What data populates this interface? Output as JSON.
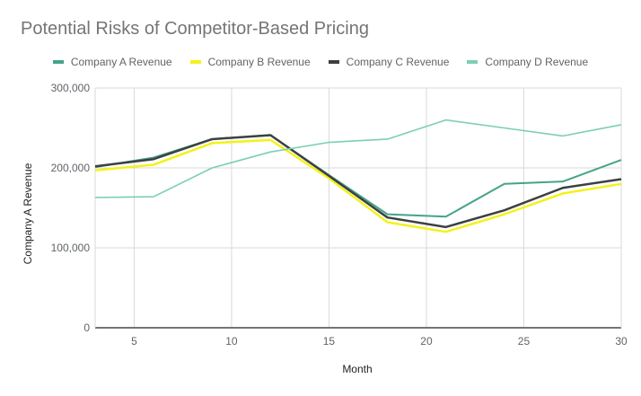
{
  "chart_data": {
    "type": "line",
    "title": "Potential Risks of Competitor-Based Pricing",
    "xlabel": "Month",
    "ylabel": "Company A Revenue",
    "xlim": [
      3,
      30
    ],
    "ylim": [
      0,
      300000
    ],
    "x_ticks": [
      5,
      10,
      15,
      20,
      25,
      30
    ],
    "y_ticks": [
      0,
      100000,
      200000,
      300000
    ],
    "y_tick_labels": [
      "0",
      "100,000",
      "200,000",
      "300,000"
    ],
    "grid": true,
    "legend_position": "top",
    "x": [
      3,
      6,
      9,
      12,
      15,
      18,
      21,
      24,
      27,
      30
    ],
    "series": [
      {
        "name": "Company A Revenue",
        "color": "#45a38a",
        "values": [
          201000,
          213000,
          236000,
          241000,
          191000,
          142000,
          139000,
          180000,
          183000,
          210000
        ]
      },
      {
        "name": "Company B Revenue",
        "color": "#f2f21a",
        "values": [
          197000,
          204000,
          231000,
          235000,
          187000,
          132000,
          120000,
          142000,
          168000,
          180000
        ]
      },
      {
        "name": "Company C Revenue",
        "color": "#3c4043",
        "values": [
          202000,
          211000,
          236000,
          241000,
          190000,
          138000,
          126000,
          147000,
          175000,
          186000
        ]
      },
      {
        "name": "Company D Revenue",
        "color": "#7bcfb4",
        "values": [
          163000,
          164000,
          200000,
          220000,
          232000,
          236000,
          260000,
          250000,
          240000,
          254000
        ]
      }
    ]
  }
}
